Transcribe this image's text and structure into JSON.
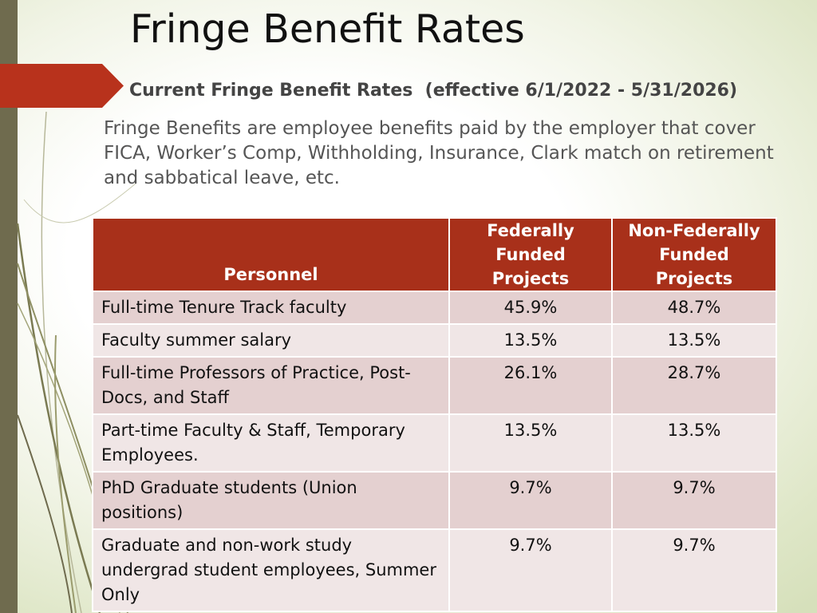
{
  "slide": {
    "title": "Fringe Benefit Rates",
    "subtitle": "Current Fringe Benefit Rates  (effective 6/1/2022 - 5/31/2026)",
    "description": "Fringe Benefits are employee benefits paid by the employer that cover FICA, Worker’s Comp, Withholding, Insurance, Clark match on retirement and sabbatical leave, etc.",
    "colors": {
      "header_bg": "#a8301a",
      "arrow": "#b8321c",
      "left_bar": "#6f6b4e"
    }
  },
  "table": {
    "headers": {
      "personnel": "Personnel",
      "federal_line1": "Federally",
      "federal_line2": "Funded Projects",
      "nonfederal_line1": "Non-Federally",
      "nonfederal_line2": "Funded Projects"
    },
    "rows": [
      {
        "personnel": "Full-time Tenure Track faculty",
        "federal": "45.9%",
        "nonfederal": "48.7%"
      },
      {
        "personnel": "Faculty summer salary",
        "federal": "13.5%",
        "nonfederal": "13.5%"
      },
      {
        "personnel": "Full-time Professors of Practice, Post-Docs, and Staff",
        "federal": "26.1%",
        "nonfederal": "28.7%"
      },
      {
        "personnel": "Part-time Faculty & Staff, Temporary Employees.",
        "federal": "13.5%",
        "nonfederal": "13.5%"
      },
      {
        "personnel": "PhD Graduate students (Union positions)",
        "federal": "9.7%",
        "nonfederal": "9.7%"
      },
      {
        "personnel": "Graduate and non-work study undergrad student employees, Summer Only",
        "federal": "9.7%",
        "nonfederal": "9.7%"
      }
    ]
  }
}
